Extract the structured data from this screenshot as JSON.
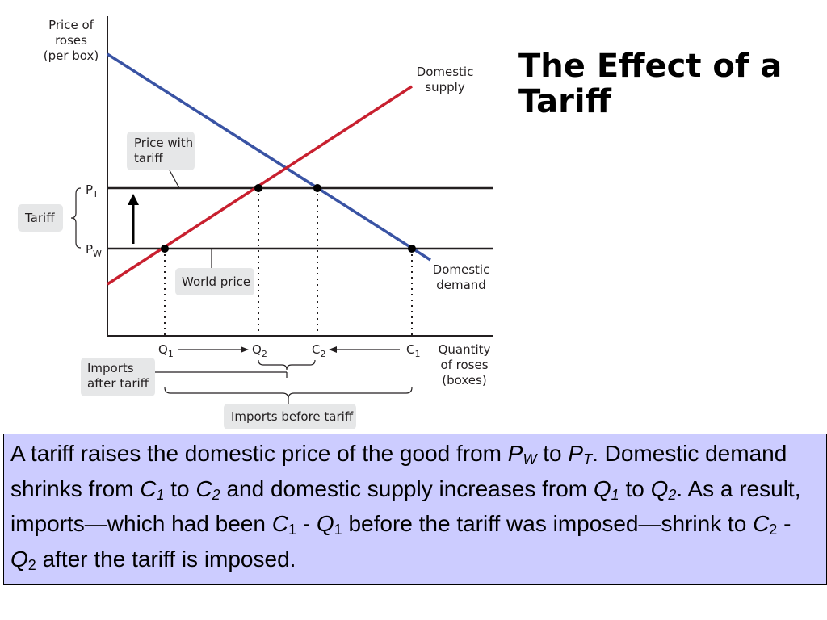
{
  "title": [
    "The Effect of a",
    "Tariff"
  ],
  "diagram": {
    "y_axis_label": [
      "Price of",
      "roses",
      "(per box)"
    ],
    "x_axis_label": [
      "Quantity",
      "of roses",
      "(boxes)"
    ],
    "supply_label": [
      "Domestic",
      "supply"
    ],
    "demand_label": [
      "Domestic",
      "demand"
    ],
    "price_with_tariff": [
      "Price with",
      "tariff"
    ],
    "tariff": "Tariff",
    "world_price": "World price",
    "pt": {
      "main": "P",
      "sub": "T"
    },
    "pw": {
      "main": "P",
      "sub": "W"
    },
    "q1": {
      "main": "Q",
      "sub": "1"
    },
    "q2": {
      "main": "Q",
      "sub": "2"
    },
    "c2": {
      "main": "C",
      "sub": "2"
    },
    "c1": {
      "main": "C",
      "sub": "1"
    },
    "imports_after_tariff": [
      "Imports",
      "after tariff"
    ],
    "imports_before_tariff": "Imports before tariff"
  },
  "caption": [
    "A tariff raises the domestic price of the good from ",
    "P",
    "W",
    " to ",
    "P",
    "T",
    ". Domestic demand shrinks from ",
    "C",
    "1",
    " to ",
    "C",
    "2",
    " and domestic supply increases from ",
    "Q",
    "1",
    " to ",
    "Q",
    "2",
    ". As a result, imports—which had been ",
    "C",
    "1",
    " - ",
    "Q",
    "1",
    " before the tariff was imposed—shrink to ",
    "C",
    "2",
    " - ",
    "Q",
    "2",
    " after the tariff is imposed."
  ]
}
